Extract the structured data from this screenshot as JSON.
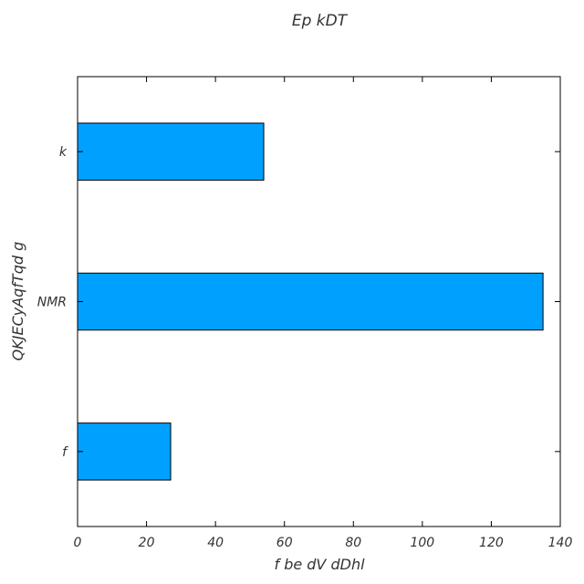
{
  "chart_data": {
    "type": "bar",
    "orientation": "horizontal",
    "title": "Ep kDT",
    "xlabel": "f  be  dV dDhl",
    "ylabel": "QKJECyAqfTqd g",
    "categories": [
      "f",
      "NMR",
      "k"
    ],
    "values": [
      27,
      135,
      54
    ],
    "xlim": [
      0,
      140
    ],
    "xticks": [
      0,
      20,
      40,
      60,
      80,
      100,
      120,
      140
    ],
    "grid": false,
    "bar_color": "#00a0ff"
  }
}
